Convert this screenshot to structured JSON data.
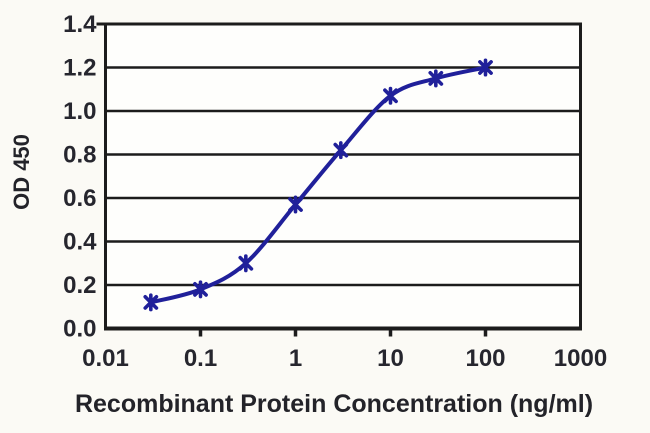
{
  "chart_data": {
    "type": "line",
    "title": "",
    "xlabel": "Recombinant Protein Concentration (ng/ml)",
    "ylabel": "OD 450",
    "x_scale": "log",
    "xlim": [
      0.01,
      1000
    ],
    "ylim": [
      0,
      1.4
    ],
    "x_ticks": [
      0.01,
      0.1,
      1,
      10,
      100,
      1000
    ],
    "x_tick_labels": [
      "0.01",
      "0.1",
      "1",
      "10",
      "100",
      "1000"
    ],
    "y_ticks": [
      0,
      0.2,
      0.4,
      0.6,
      0.8,
      1.0,
      1.2,
      1.4
    ],
    "y_tick_labels": [
      "0.0",
      "0.2",
      "0.4",
      "0.6",
      "0.8",
      "1.0",
      "1.2",
      "1.4"
    ],
    "grid": "horizontal",
    "legend": "none",
    "series": [
      {
        "name": "OD 450",
        "x": [
          0.03,
          0.1,
          0.3,
          1,
          3,
          10,
          30,
          100
        ],
        "y": [
          0.12,
          0.18,
          0.3,
          0.57,
          0.82,
          1.07,
          1.15,
          1.2
        ],
        "marker": "star",
        "smooth": true
      }
    ],
    "colors": {
      "page_bg": "#fbfaf5",
      "plot_bg": "#fefefc",
      "grid": "#1c1c1c",
      "frame": "#1c1c1c",
      "line": "#20209a",
      "text": "#26262e"
    }
  }
}
